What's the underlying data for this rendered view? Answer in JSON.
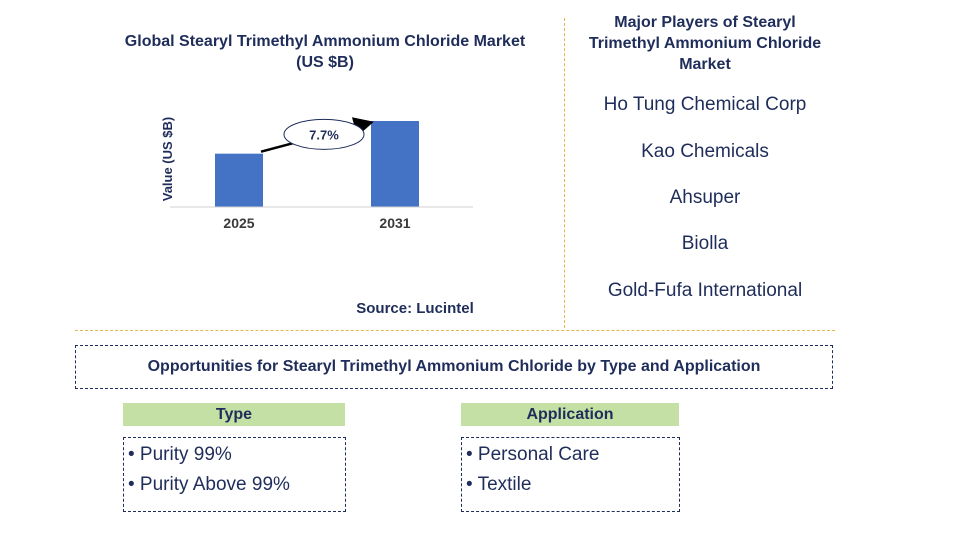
{
  "chart_data": {
    "type": "bar",
    "title": "Global Stearyl Trimethyl Ammonium Chloride Market (US $B)",
    "title_line1": "Global Stearyl Trimethyl Ammonium Chloride Market",
    "title_line2": "(US $B)",
    "categories": [
      "2025",
      "2031"
    ],
    "values": [
      0.62,
      1.0
    ],
    "ylabel": "Value (US $B)",
    "xlabel": "",
    "ylim": [
      0,
      1.0
    ],
    "annotation": "7.7%",
    "bar_color": "#4472c4"
  },
  "source": "Source: Lucintel",
  "players": {
    "title_line1": "Major Players of Stearyl",
    "title_line2": "Trimethyl Ammonium Chloride",
    "title_line3": "Market",
    "items": [
      "Ho Tung Chemical Corp",
      "Kao Chemicals",
      "Ahsuper",
      "Biolla",
      "Gold-Fufa International"
    ]
  },
  "opportunities": {
    "title": "Opportunities for Stearyl Trimethyl Ammonium Chloride by Type and Application",
    "type": {
      "header": "Type",
      "items": [
        "• Purity 99%",
        "• Purity Above 99%"
      ]
    },
    "application": {
      "header": "Application",
      "items": [
        "• Personal Care",
        "• Textile"
      ]
    }
  },
  "colors": {
    "text": "#1f2d5a",
    "divider": "#e3b64a",
    "header_bg": "#c5e0a5"
  }
}
